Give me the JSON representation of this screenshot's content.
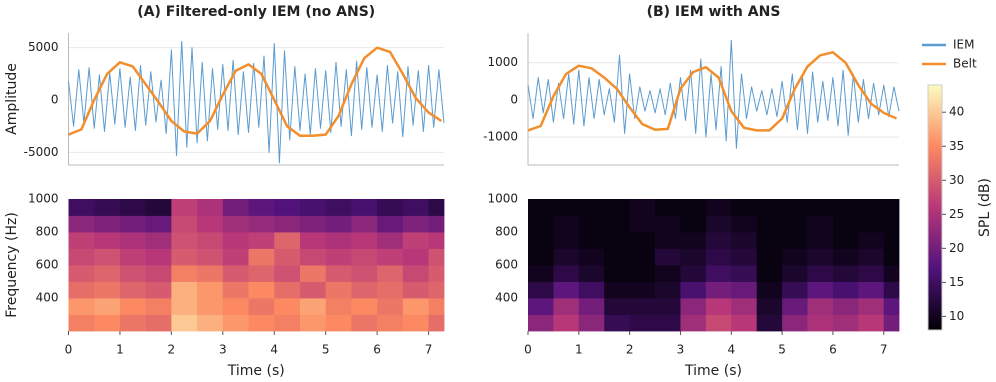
{
  "chart_data": [
    {
      "type": "line",
      "title": "(A) Filtered-only IEM (no ANS)",
      "ylabel": "Amplitude",
      "xlim": [
        0,
        7.3
      ],
      "ylim": [
        -6200,
        6400
      ],
      "yticks": [
        -5000,
        0,
        5000
      ],
      "grid": true,
      "series": [
        {
          "color": "#5b9bd0",
          "width": 1,
          "x": [
            0,
            0.1,
            0.2,
            0.3,
            0.4,
            0.5,
            0.6,
            0.7,
            0.8,
            0.9,
            1,
            1.1,
            1.2,
            1.3,
            1.4,
            1.5,
            1.6,
            1.7,
            1.8,
            1.9,
            2,
            2.1,
            2.2,
            2.3,
            2.4,
            2.5,
            2.6,
            2.7,
            2.8,
            2.9,
            3,
            3.1,
            3.2,
            3.3,
            3.4,
            3.5,
            3.6,
            3.7,
            3.8,
            3.9,
            4,
            4.1,
            4.2,
            4.3,
            4.4,
            4.5,
            4.6,
            4.7,
            4.8,
            4.9,
            5,
            5.1,
            5.2,
            5.3,
            5.4,
            5.5,
            5.6,
            5.7,
            5.8,
            5.9,
            6,
            6.1,
            6.2,
            6.3,
            6.4,
            6.5,
            6.6,
            6.7,
            6.8,
            6.9,
            7,
            7.1,
            7.2,
            7.3
          ],
          "values": [
            1800,
            -2500,
            2900,
            -2200,
            3100,
            -2700,
            2400,
            -3000,
            2600,
            -2300,
            3000,
            -2600,
            2200,
            -2900,
            3300,
            -2400,
            2700,
            -2100,
            1900,
            -3200,
            4800,
            -5300,
            5600,
            -4500,
            5000,
            -4100,
            3600,
            -3900,
            3000,
            -2800,
            3400,
            -2900,
            3800,
            -3300,
            2700,
            -3100,
            3500,
            -2600,
            4200,
            -5000,
            5400,
            -6000,
            4700,
            -3800,
            3200,
            -2900,
            2500,
            -3300,
            3000,
            -2700,
            2800,
            -3100,
            3600,
            -2500,
            2900,
            -3400,
            3700,
            -2800,
            3100,
            -2600,
            2400,
            -3000,
            3300,
            -2200,
            2700,
            -3500,
            3200,
            -2400,
            2800,
            -3000,
            3300,
            -2600,
            2900,
            -2200
          ]
        },
        {
          "color": "#f28e2b",
          "width": 2.5,
          "x": [
            0,
            0.25,
            0.5,
            0.75,
            1,
            1.25,
            1.5,
            1.75,
            2,
            2.25,
            2.5,
            2.75,
            3,
            3.25,
            3.5,
            3.75,
            4,
            4.25,
            4.5,
            4.75,
            5,
            5.25,
            5.5,
            5.75,
            6,
            6.25,
            6.5,
            6.75,
            7,
            7.25
          ],
          "values": [
            -3300,
            -2800,
            0,
            2500,
            3600,
            3200,
            1500,
            -200,
            -2000,
            -3000,
            -3200,
            -2000,
            500,
            2800,
            3400,
            2500,
            0,
            -2500,
            -3400,
            -3400,
            -3300,
            -1500,
            1500,
            4000,
            5000,
            4600,
            2500,
            200,
            -1200,
            -2000
          ]
        }
      ]
    },
    {
      "type": "heatmap",
      "ylabel": "Frequency (Hz)",
      "xlabel": "Time (s)",
      "xlim": [
        0,
        7.3
      ],
      "ylim": [
        200,
        1000
      ],
      "xticks": [
        0,
        1,
        2,
        3,
        4,
        5,
        6,
        7
      ],
      "yticks": [
        400,
        600,
        800,
        1000
      ],
      "x": [
        0,
        0.5,
        1,
        1.5,
        2,
        2.5,
        3,
        3.5,
        4,
        4.5,
        5,
        5.5,
        6,
        6.5,
        7,
        7.3
      ],
      "y": [
        200,
        300,
        400,
        500,
        600,
        700,
        800,
        900,
        1000
      ],
      "zlim": [
        8,
        44
      ],
      "colormap": "magma",
      "z": [
        [
          34,
          35,
          33,
          32,
          40,
          38,
          36,
          35,
          34,
          36,
          35,
          33,
          34,
          35,
          32
        ],
        [
          36,
          37,
          35,
          34,
          38,
          36,
          35,
          33,
          35,
          37,
          34,
          35,
          33,
          36,
          34
        ],
        [
          32,
          33,
          31,
          30,
          38,
          36,
          33,
          35,
          32,
          30,
          33,
          31,
          32,
          30,
          31
        ],
        [
          30,
          31,
          29,
          28,
          34,
          33,
          30,
          31,
          29,
          33,
          30,
          29,
          31,
          28,
          30
        ],
        [
          28,
          29,
          27,
          26,
          30,
          29,
          27,
          33,
          30,
          28,
          27,
          28,
          27,
          26,
          29
        ],
        [
          27,
          26,
          25,
          24,
          29,
          28,
          26,
          27,
          31,
          26,
          25,
          26,
          24,
          27,
          26
        ],
        [
          22,
          21,
          20,
          19,
          28,
          26,
          24,
          23,
          22,
          21,
          20,
          22,
          19,
          21,
          20
        ],
        [
          15,
          14,
          13,
          12,
          27,
          25,
          20,
          18,
          17,
          16,
          15,
          16,
          14,
          15,
          13
        ]
      ]
    },
    {
      "type": "line",
      "title": "(B) IEM with ANS",
      "xlim": [
        0,
        7.3
      ],
      "ylim": [
        -1750,
        1800
      ],
      "yticks": [
        -1000,
        0,
        1000
      ],
      "grid": true,
      "legend": "right",
      "series": [
        {
          "name": "IEM",
          "color": "#5b9bd0",
          "width": 1,
          "x": [
            0,
            0.1,
            0.2,
            0.3,
            0.4,
            0.5,
            0.6,
            0.7,
            0.8,
            0.9,
            1,
            1.1,
            1.2,
            1.3,
            1.4,
            1.5,
            1.6,
            1.7,
            1.8,
            1.9,
            2,
            2.1,
            2.2,
            2.3,
            2.4,
            2.5,
            2.6,
            2.7,
            2.8,
            2.9,
            3,
            3.1,
            3.2,
            3.3,
            3.4,
            3.5,
            3.6,
            3.7,
            3.8,
            3.9,
            4,
            4.1,
            4.2,
            4.3,
            4.4,
            4.5,
            4.6,
            4.7,
            4.8,
            4.9,
            5,
            5.1,
            5.2,
            5.3,
            5.4,
            5.5,
            5.6,
            5.7,
            5.8,
            5.9,
            6,
            6.1,
            6.2,
            6.3,
            6.4,
            6.5,
            6.6,
            6.7,
            6.8,
            6.9,
            7,
            7.1,
            7.2,
            7.3
          ],
          "values": [
            400,
            -500,
            600,
            -350,
            550,
            -600,
            450,
            -500,
            700,
            -650,
            800,
            -700,
            600,
            -500,
            550,
            -400,
            300,
            -600,
            1200,
            -900,
            700,
            -500,
            350,
            -300,
            250,
            -350,
            300,
            -400,
            450,
            -500,
            600,
            -550,
            800,
            -900,
            1100,
            -1000,
            700,
            -800,
            900,
            -1100,
            1600,
            -1300,
            700,
            -500,
            350,
            -300,
            250,
            -400,
            300,
            -450,
            500,
            -600,
            700,
            -800,
            650,
            -900,
            750,
            -600,
            500,
            -550,
            600,
            -700,
            800,
            -950,
            700,
            -600,
            550,
            -500,
            450,
            -400,
            400,
            -450,
            350,
            -300
          ]
        },
        {
          "name": "Belt",
          "color": "#f28e2b",
          "width": 2.5,
          "x": [
            0,
            0.25,
            0.5,
            0.75,
            1,
            1.25,
            1.5,
            1.75,
            2,
            2.25,
            2.5,
            2.75,
            3,
            3.25,
            3.5,
            3.75,
            4,
            4.25,
            4.5,
            4.75,
            5,
            5.25,
            5.5,
            5.75,
            6,
            6.25,
            6.5,
            6.75,
            7,
            7.25
          ],
          "values": [
            -820,
            -700,
            100,
            700,
            920,
            850,
            600,
            300,
            -200,
            -650,
            -800,
            -780,
            300,
            750,
            880,
            600,
            -300,
            -750,
            -820,
            -820,
            -500,
            300,
            900,
            1200,
            1280,
            1000,
            400,
            -100,
            -350,
            -500
          ]
        }
      ]
    },
    {
      "type": "heatmap",
      "xlabel": "Time (s)",
      "xlim": [
        0,
        7.3
      ],
      "ylim": [
        200,
        1000
      ],
      "xticks": [
        0,
        1,
        2,
        3,
        4,
        5,
        6,
        7
      ],
      "yticks": [
        400,
        600,
        800,
        1000
      ],
      "x": [
        0,
        0.5,
        1,
        1.5,
        2,
        2.5,
        3,
        3.5,
        4,
        4.5,
        5,
        5.5,
        6,
        6.5,
        7,
        7.3
      ],
      "y": [
        200,
        300,
        400,
        500,
        600,
        700,
        800,
        900,
        1000
      ],
      "zlim": [
        8,
        44
      ],
      "colormap": "magma",
      "colorbar": {
        "label": "SPL (dB)",
        "ticks": [
          10,
          15,
          20,
          25,
          30,
          35,
          40
        ]
      },
      "z": [
        [
          22,
          26,
          22,
          14,
          13,
          13,
          24,
          28,
          26,
          12,
          22,
          25,
          24,
          26,
          20
        ],
        [
          18,
          24,
          20,
          12,
          12,
          12,
          22,
          26,
          24,
          11,
          19,
          24,
          22,
          24,
          18
        ],
        [
          13,
          18,
          15,
          10,
          10,
          11,
          16,
          20,
          19,
          10,
          14,
          18,
          16,
          18,
          13
        ],
        [
          10,
          13,
          11,
          9,
          9,
          10,
          12,
          15,
          14,
          9,
          11,
          13,
          12,
          13,
          10
        ],
        [
          9,
          11,
          10,
          9,
          9,
          12,
          11,
          13,
          12,
          9,
          10,
          11,
          10,
          11,
          9
        ],
        [
          9,
          10,
          9,
          9,
          9,
          10,
          10,
          12,
          11,
          9,
          9,
          10,
          9,
          10,
          9
        ],
        [
          9,
          10,
          9,
          9,
          10,
          10,
          9,
          11,
          10,
          9,
          9,
          10,
          9,
          9,
          9
        ],
        [
          9,
          9,
          9,
          9,
          10,
          9,
          9,
          10,
          9,
          9,
          9,
          9,
          9,
          9,
          9
        ]
      ]
    }
  ]
}
